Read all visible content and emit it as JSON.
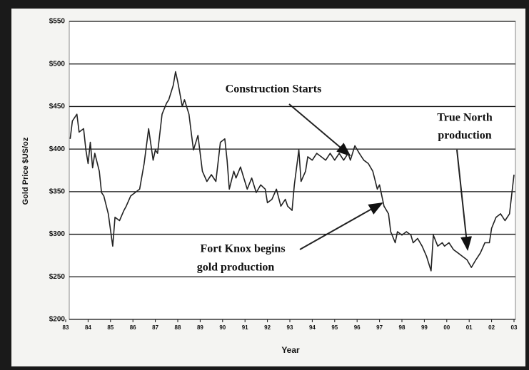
{
  "chart_data": {
    "type": "line",
    "x_label": "Year",
    "y_label": "Gold Price $US/oz",
    "xlim": [
      1983,
      2003
    ],
    "ylim": [
      200,
      550
    ],
    "xticks": [
      {
        "value": 1983,
        "label": "83"
      },
      {
        "value": 1984,
        "label": "84"
      },
      {
        "value": 1985,
        "label": "85"
      },
      {
        "value": 1986,
        "label": "86"
      },
      {
        "value": 1987,
        "label": "87"
      },
      {
        "value": 1988,
        "label": "88"
      },
      {
        "value": 1989,
        "label": "89"
      },
      {
        "value": 1990,
        "label": "90"
      },
      {
        "value": 1991,
        "label": "91"
      },
      {
        "value": 1992,
        "label": "92"
      },
      {
        "value": 1993,
        "label": "93"
      },
      {
        "value": 1994,
        "label": "94"
      },
      {
        "value": 1995,
        "label": "95"
      },
      {
        "value": 1996,
        "label": "96"
      },
      {
        "value": 1997,
        "label": "97"
      },
      {
        "value": 1998,
        "label": "98"
      },
      {
        "value": 1999,
        "label": "99"
      },
      {
        "value": 2000,
        "label": "00"
      },
      {
        "value": 2001,
        "label": "01"
      },
      {
        "value": 2002,
        "label": "02"
      },
      {
        "value": 2003,
        "label": "03"
      }
    ],
    "yticks": [
      {
        "value": 200,
        "label": "$200"
      },
      {
        "value": 250,
        "label": "$250"
      },
      {
        "value": 300,
        "label": "$300"
      },
      {
        "value": 350,
        "label": "$350"
      },
      {
        "value": 400,
        "label": "$400"
      },
      {
        "value": 450,
        "label": "$450"
      },
      {
        "value": 500,
        "label": "$500"
      },
      {
        "value": 550,
        "label": "$550"
      }
    ],
    "grid": true,
    "annotations": [
      {
        "lines": [
          "Construction Starts"
        ]
      },
      {
        "lines": [
          "True North",
          "production"
        ]
      },
      {
        "lines": [
          "Fort Knox begins",
          "gold production"
        ]
      }
    ],
    "series": [
      {
        "color": "#222222",
        "x": [
          1983.2,
          1983.3,
          1983.5,
          1983.6,
          1983.8,
          1983.9,
          1984.0,
          1984.1,
          1984.2,
          1984.3,
          1984.5,
          1984.6,
          1984.7,
          1984.9,
          1985.1,
          1985.2,
          1985.4,
          1985.6,
          1985.7,
          1985.9,
          1986.1,
          1986.3,
          1986.5,
          1986.7,
          1986.9,
          1987.0,
          1987.1,
          1987.3,
          1987.5,
          1987.6,
          1987.8,
          1987.9,
          1988.0,
          1988.2,
          1988.3,
          1988.5,
          1988.6,
          1988.7,
          1988.9,
          1989.1,
          1989.3,
          1989.5,
          1989.7,
          1989.9,
          1990.1,
          1990.2,
          1990.3,
          1990.5,
          1990.6,
          1990.8,
          1990.9,
          1991.1,
          1991.3,
          1991.5,
          1991.7,
          1991.9,
          1992.0,
          1992.2,
          1992.4,
          1992.6,
          1992.8,
          1992.9,
          1993.1,
          1993.2,
          1993.4,
          1993.5,
          1993.7,
          1993.8,
          1994.0,
          1994.2,
          1994.4,
          1994.6,
          1994.8,
          1995.0,
          1995.2,
          1995.4,
          1995.6,
          1995.7,
          1995.9,
          1996.1,
          1996.3,
          1996.5,
          1996.7,
          1996.9,
          1997.0,
          1997.2,
          1997.4,
          1997.5,
          1997.7,
          1997.8,
          1998.0,
          1998.2,
          1998.4,
          1998.5,
          1998.7,
          1998.9,
          1999.1,
          1999.3,
          1999.4,
          1999.6,
          1999.8,
          1999.9,
          2000.1,
          2000.3,
          2000.5,
          2000.7,
          2000.9,
          2001.1,
          2001.3,
          2001.5,
          2001.7,
          2001.9,
          2002.0,
          2002.2,
          2002.4,
          2002.6,
          2002.8,
          2003.0
        ],
        "values": [
          412,
          433,
          441,
          420,
          424,
          399,
          383,
          408,
          378,
          395,
          374,
          349,
          345,
          324,
          286,
          320,
          316,
          328,
          333,
          345,
          349,
          353,
          383,
          424,
          387,
          399,
          395,
          441,
          454,
          458,
          475,
          491,
          479,
          450,
          458,
          441,
          420,
          399,
          416,
          374,
          362,
          370,
          362,
          408,
          412,
          387,
          353,
          374,
          366,
          379,
          370,
          353,
          366,
          349,
          358,
          353,
          337,
          341,
          353,
          333,
          341,
          333,
          328,
          358,
          399,
          362,
          374,
          391,
          387,
          395,
          391,
          387,
          395,
          387,
          395,
          387,
          395,
          387,
          404,
          395,
          387,
          383,
          374,
          353,
          358,
          333,
          324,
          303,
          290,
          303,
          299,
          303,
          299,
          290,
          295,
          286,
          274,
          257,
          299,
          286,
          290,
          286,
          290,
          282,
          278,
          274,
          270,
          261,
          270,
          278,
          290,
          290,
          307,
          320,
          324,
          316,
          324,
          370
        ]
      }
    ]
  }
}
